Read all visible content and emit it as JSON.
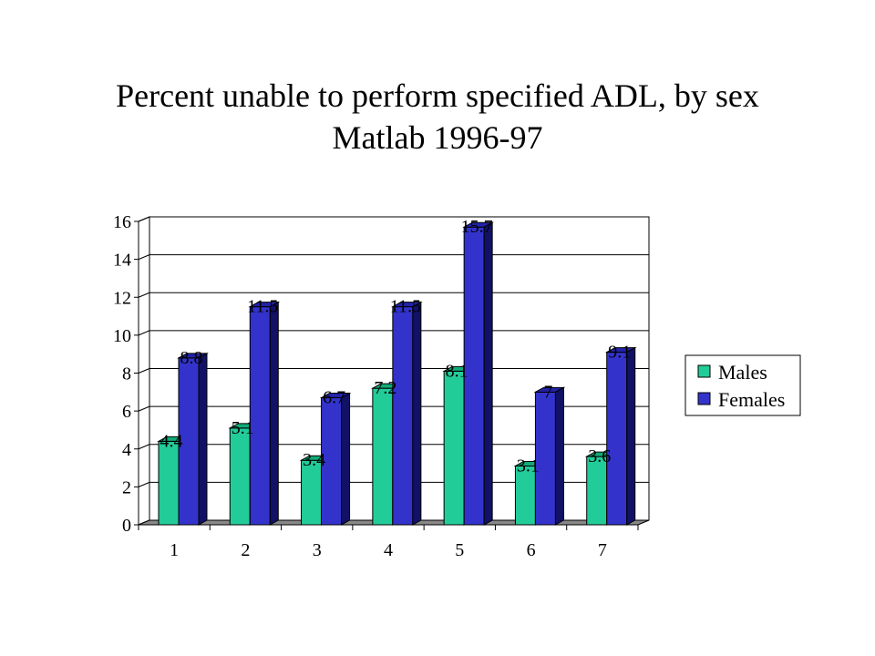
{
  "title": {
    "line1": "Percent unable to perform specified ADL, by sex",
    "line2": "Matlab 1996-97"
  },
  "colors": {
    "males": "#22cc99",
    "males_side": "#117755",
    "males_top": "#11aa77",
    "females": "#3333cc",
    "females_side": "#111166",
    "females_top": "#2222aa",
    "floor": "#888888",
    "wall": "#ffffff",
    "grid": "#000000"
  },
  "chart_data": {
    "type": "bar",
    "categories": [
      "1",
      "2",
      "3",
      "4",
      "5",
      "6",
      "7"
    ],
    "series": [
      {
        "name": "Males",
        "values": [
          4.4,
          5.1,
          3.4,
          7.2,
          8.1,
          3.1,
          3.6
        ],
        "labels": [
          "4.4",
          "5.1",
          "3.4",
          "7.2",
          "8.1",
          "3.1",
          "3.6"
        ]
      },
      {
        "name": "Females",
        "values": [
          8.8,
          11.5,
          6.7,
          11.5,
          15.7,
          7,
          9.1
        ],
        "labels": [
          "8.8",
          "11.5",
          "6.7",
          "11.5",
          "15.7",
          "7",
          "9.1"
        ]
      }
    ],
    "yticks": [
      "0",
      "2",
      "4",
      "6",
      "8",
      "10",
      "12",
      "14",
      "16"
    ],
    "ylim": [
      0,
      16
    ],
    "grid": true,
    "legend_position": "right",
    "style": "3d-clustered-column"
  }
}
